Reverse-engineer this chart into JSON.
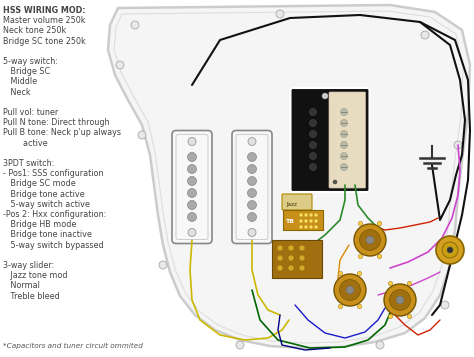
{
  "bg_color": "#ffffff",
  "pickguard_color": "#f5f5f5",
  "pickguard_outline": "#cccccc",
  "pickguard_inner": "#dddddd",
  "text_color": "#444444",
  "text_color2": "#555555",
  "font_size": 5.8,
  "left_text_lines": [
    [
      "HSS WIRING MOD:",
      true
    ],
    [
      "Master volume 250k",
      false
    ],
    [
      "Neck tone 250k",
      false
    ],
    [
      "Bridge SC tone 250k",
      false
    ],
    [
      "",
      false
    ],
    [
      "5-way switch:",
      false
    ],
    [
      "   Bridge SC",
      false
    ],
    [
      "   Middle",
      false
    ],
    [
      "   Neck",
      false
    ],
    [
      "",
      false
    ],
    [
      "Pull vol: tuner",
      false
    ],
    [
      "Pull N tone: Direct through",
      false
    ],
    [
      "Pull B tone: Neck p'up always",
      false
    ],
    [
      "        active",
      false
    ],
    [
      "",
      false
    ],
    [
      "3PDT switch:",
      false
    ],
    [
      "- Pos1: SSS configuration",
      false
    ],
    [
      "   Bridge SC mode",
      false
    ],
    [
      "   Bridge tone active",
      false
    ],
    [
      "   5-way switch active",
      false
    ],
    [
      "-Pos 2: Hxx configuration:",
      false
    ],
    [
      "   Bridge HB mode",
      false
    ],
    [
      "   Bridge tone inactive",
      false
    ],
    [
      "   5-way switch bypassed",
      false
    ],
    [
      "",
      false
    ],
    [
      "3-way slider:",
      false
    ],
    [
      "   Jazz tone mod",
      false
    ],
    [
      "   Normal",
      false
    ],
    [
      "   Treble bleed",
      false
    ]
  ],
  "bottom_note": "*Capacitors and tuner circuit ommited",
  "sc_pickup_color": "#f8f8f8",
  "sc_pickup_border": "#888888",
  "sc_pole_color": "#aaaaaa",
  "hb_outer_color": "#111111",
  "hb_inner_color": "#e8dcc0",
  "hb_pole_dark": "#222222",
  "hb_pole_light": "#aaaaaa",
  "pot_color": "#c8901a",
  "pot_inner": "#a07010",
  "switch_color": "#c8901a",
  "jazz_color": "#c8901a",
  "jack_color": "#d4a020",
  "wire_black": "#111111",
  "wire_yellow": "#ccb800",
  "wire_green": "#2a8a2a",
  "wire_red": "#cc2200",
  "wire_blue": "#1a1acc",
  "wire_pink": "#cc44cc",
  "wire_dkgreen": "#006600",
  "wire_navy": "#000080"
}
